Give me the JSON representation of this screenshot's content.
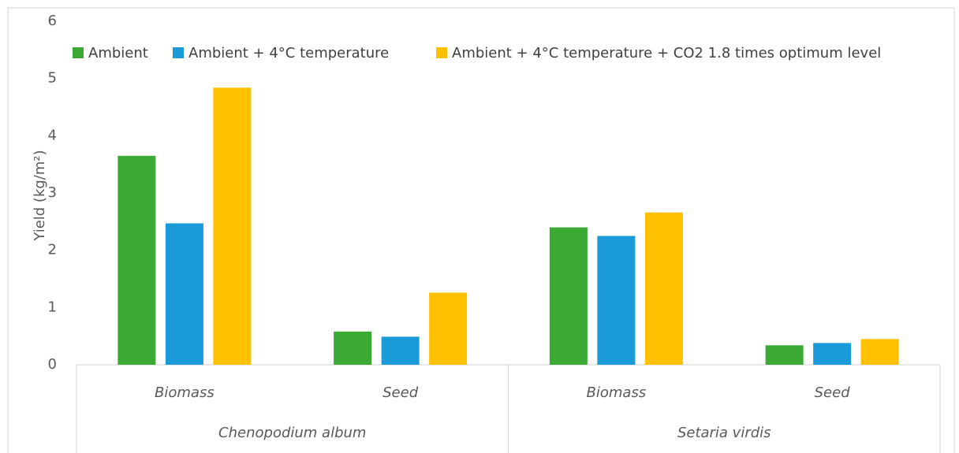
{
  "chart_data": {
    "type": "bar",
    "title": "",
    "ylabel": "Yield (kg/m²)",
    "ylim": [
      0,
      6
    ],
    "yticks": [
      0,
      1,
      2,
      3,
      4,
      5,
      6
    ],
    "grid": false,
    "legend_position": "top",
    "groups": [
      {
        "label": "Chenopodium album",
        "categories": [
          "Biomass",
          "Seed"
        ]
      },
      {
        "label": "Setaria virdis",
        "categories": [
          "Biomass",
          "Seed"
        ]
      }
    ],
    "series": [
      {
        "name": "Ambient",
        "color": "#3aaa35",
        "values": [
          3.65,
          0.58,
          2.4,
          0.34
        ]
      },
      {
        "name": "Ambient + 4°C temperature",
        "color": "#1a9ad6",
        "values": [
          2.47,
          0.49,
          2.25,
          0.38
        ]
      },
      {
        "name": "Ambient + 4°C temperature + CO2 1.8 times optimum level",
        "color": "#ffc000",
        "values": [
          4.84,
          1.26,
          2.66,
          0.45
        ]
      }
    ]
  }
}
